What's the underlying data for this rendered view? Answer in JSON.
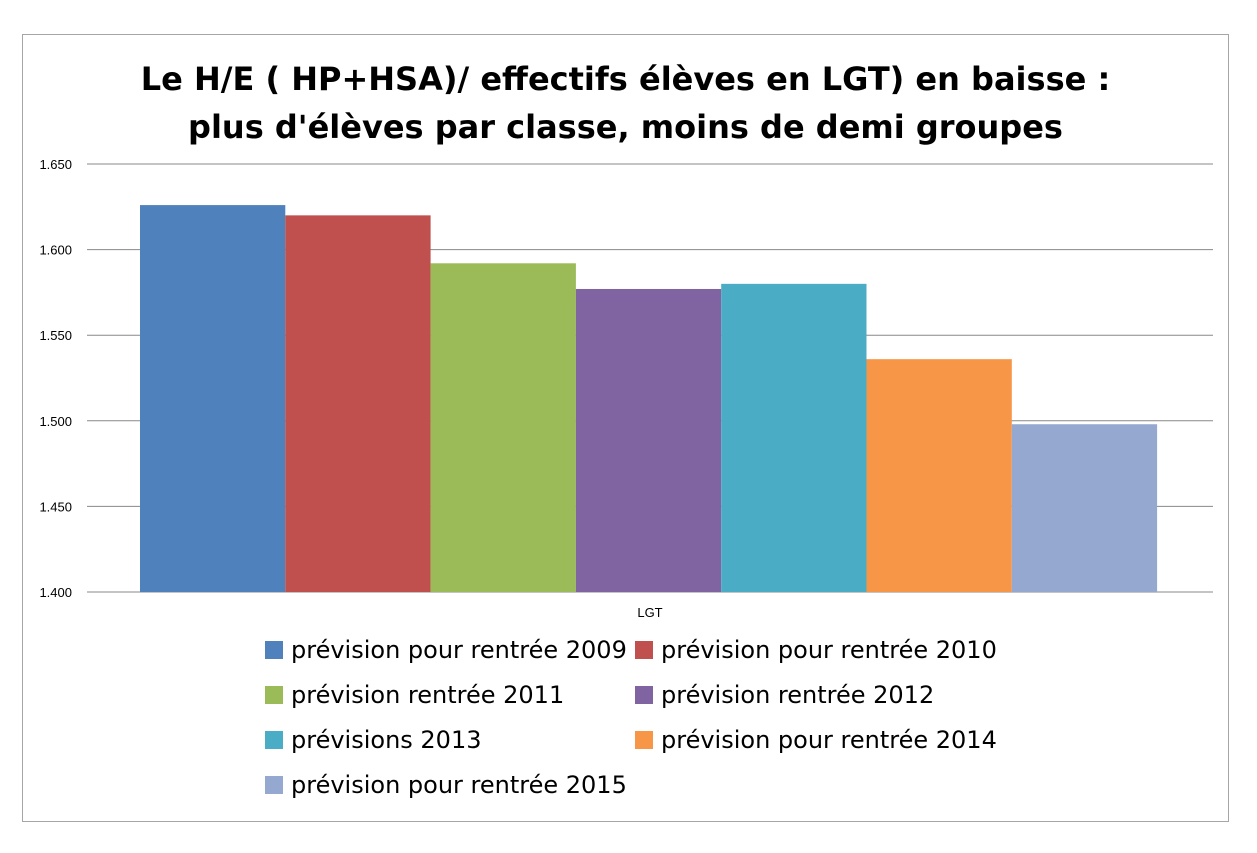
{
  "chart_data": {
    "type": "bar",
    "title": "Le H/E ( HP+HSA)/ effectifs élèves en LGT) en baisse :",
    "subtitle": "plus d'élèves par classe, moins de demi groupes",
    "categories": [
      "LGT"
    ],
    "ylim": [
      1.4,
      1.65
    ],
    "yticks": [
      "1.400",
      "1.450",
      "1.500",
      "1.550",
      "1.600",
      "1.650"
    ],
    "ytick_values": [
      1.4,
      1.45,
      1.5,
      1.55,
      1.6,
      1.65
    ],
    "grid": true,
    "legend_position": "bottom",
    "series": [
      {
        "name": "prévision pour rentrée 2009",
        "values": [
          1.626
        ],
        "color": "#4f81bd"
      },
      {
        "name": "prévision pour rentrée 2010",
        "values": [
          1.62
        ],
        "color": "#c0504d"
      },
      {
        "name": "prévision rentrée 2011",
        "values": [
          1.592
        ],
        "color": "#9bbb59"
      },
      {
        "name": "prévision rentrée 2012",
        "values": [
          1.577
        ],
        "color": "#8064a2"
      },
      {
        "name": "prévisions 2013",
        "values": [
          1.58
        ],
        "color": "#4bacc6"
      },
      {
        "name": "prévision pour rentrée 2014",
        "values": [
          1.536
        ],
        "color": "#f79646"
      },
      {
        "name": "prévision pour rentrée 2015",
        "values": [
          1.498
        ],
        "color": "#95a9d0"
      }
    ]
  }
}
